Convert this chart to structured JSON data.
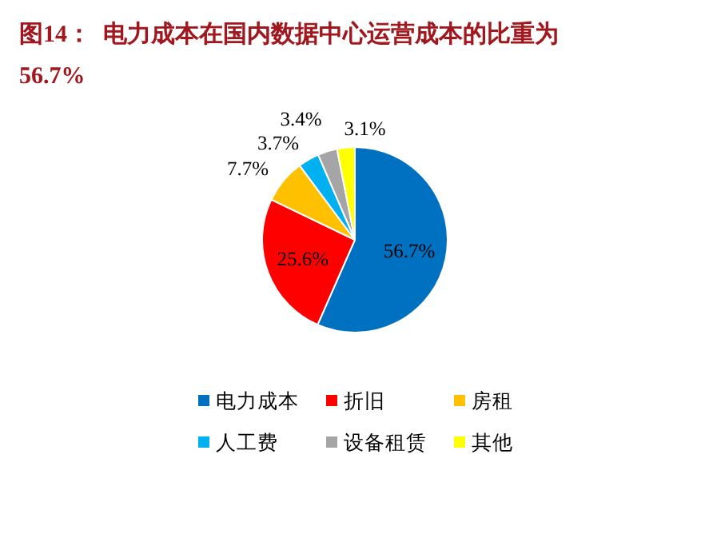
{
  "chart_data": {
    "type": "pie",
    "title": "图14：  电力成本在国内数据中心运营成本的比重为56.7%",
    "categories": [
      "电力成本",
      "折旧",
      "房租",
      "人工费",
      "设备租赁",
      "其他"
    ],
    "values": [
      56.7,
      25.6,
      7.7,
      3.7,
      3.4,
      3.1
    ],
    "colors": [
      "#0070c0",
      "#ff0000",
      "#ffc000",
      "#00b0f0",
      "#a5a5a5",
      "#ffff00"
    ],
    "value_labels": [
      "56.7%",
      "25.6%",
      "7.7%",
      "3.7%",
      "3.4%",
      "3.1%"
    ],
    "legend": "bottom"
  }
}
